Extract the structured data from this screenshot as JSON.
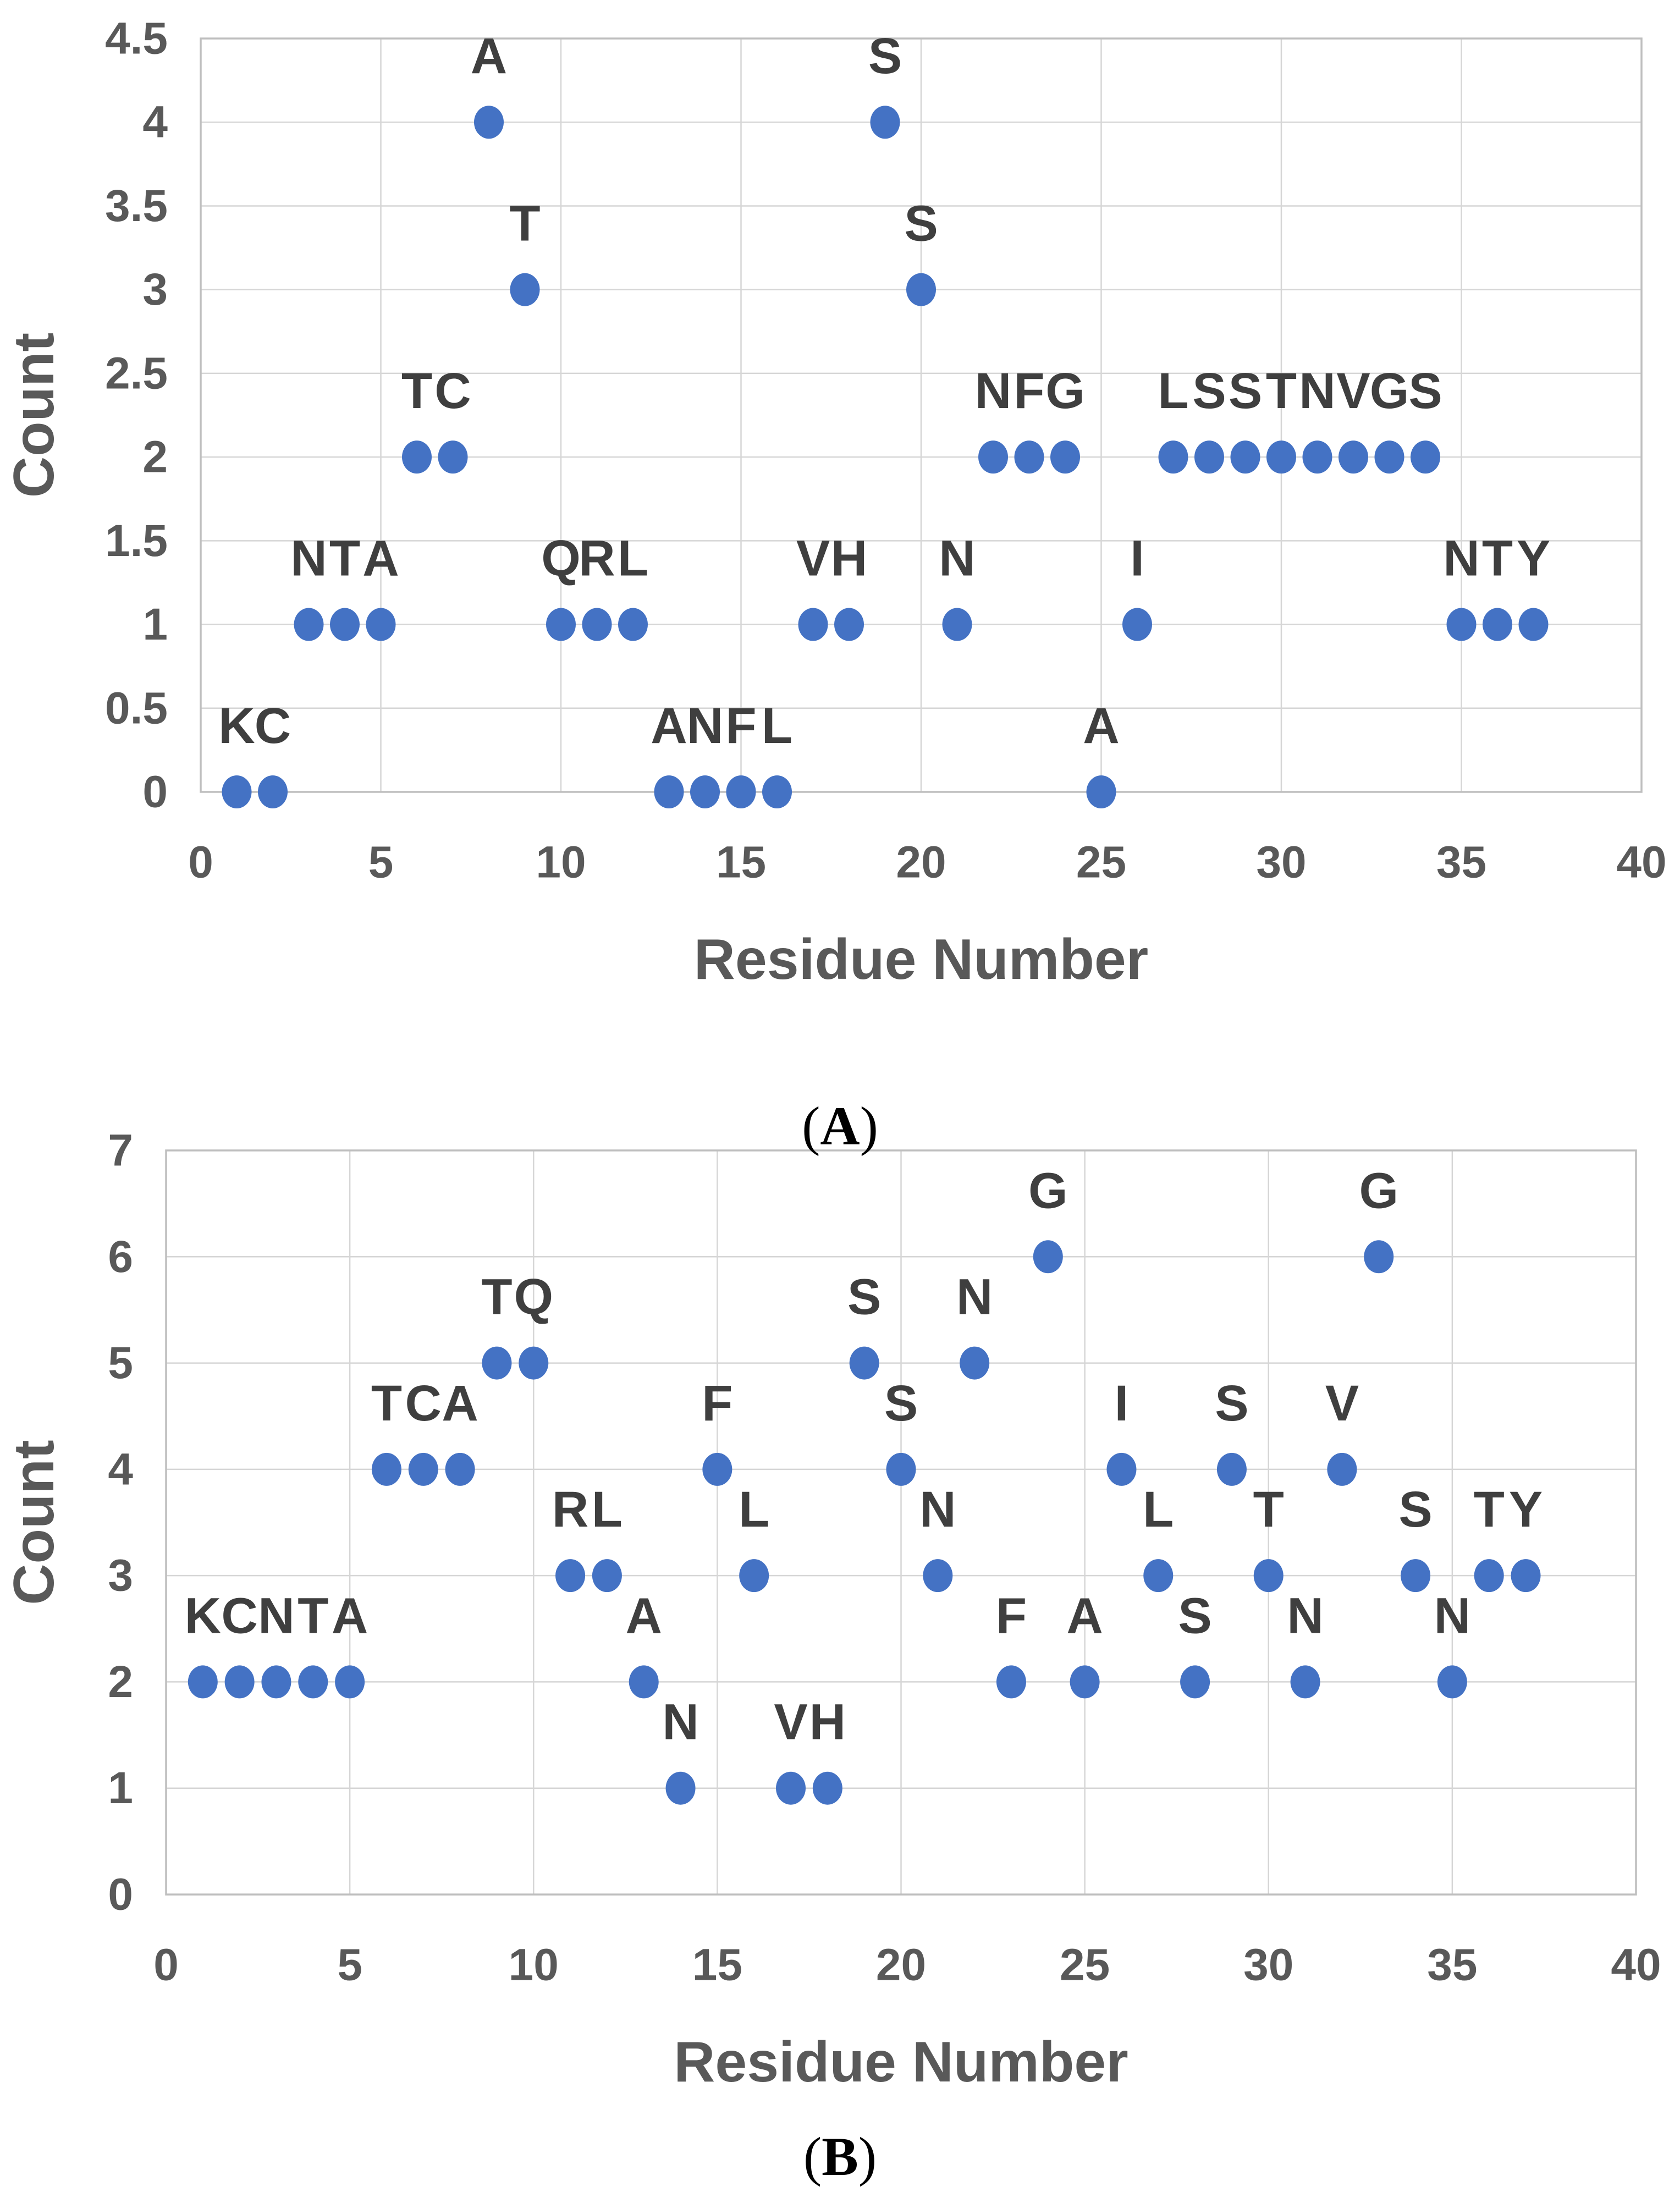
{
  "figure": {
    "background": "#ffffff",
    "captions": {
      "a_open": "(",
      "a_letter": "A",
      "a_close": ")",
      "b_open": "(",
      "b_letter": "B",
      "b_close": ")"
    }
  },
  "colors": {
    "dot": "#4472C4",
    "grid": "#D6D6D6",
    "axis_border": "#BFBFBF",
    "tick_text": "#595959",
    "axis_title_text": "#595959",
    "point_label_text": "#3F3F3F"
  },
  "chart_data": [
    {
      "type": "scatter",
      "panel": "A",
      "caption_open": "(",
      "caption_letter": "A",
      "caption_close": ")",
      "xlabel": "Residue Number",
      "ylabel": "Count",
      "xlim": [
        0,
        40
      ],
      "ylim": [
        0,
        4.5
      ],
      "xticks": [
        0,
        5,
        10,
        15,
        20,
        25,
        30,
        35,
        40
      ],
      "xtick_labels": [
        "0",
        "5",
        "10",
        "15",
        "20",
        "25",
        "30",
        "35",
        "40"
      ],
      "yticks": [
        0,
        0.5,
        1,
        1.5,
        2,
        2.5,
        3,
        3.5,
        4,
        4.5
      ],
      "ytick_labels": [
        "0",
        "0.5",
        "1",
        "1.5",
        "2",
        "2.5",
        "3",
        "3.5",
        "4",
        "4.5"
      ],
      "grid": true,
      "legend": "none",
      "points": [
        {
          "x": 1,
          "y": 0,
          "label": "K"
        },
        {
          "x": 2,
          "y": 0,
          "label": "C"
        },
        {
          "x": 3,
          "y": 1,
          "label": "N"
        },
        {
          "x": 4,
          "y": 1,
          "label": "T"
        },
        {
          "x": 5,
          "y": 1,
          "label": "A"
        },
        {
          "x": 6,
          "y": 2,
          "label": "T"
        },
        {
          "x": 7,
          "y": 2,
          "label": "C"
        },
        {
          "x": 8,
          "y": 4,
          "label": "A"
        },
        {
          "x": 9,
          "y": 3,
          "label": "T"
        },
        {
          "x": 10,
          "y": 1,
          "label": "Q"
        },
        {
          "x": 11,
          "y": 1,
          "label": "R"
        },
        {
          "x": 12,
          "y": 1,
          "label": "L"
        },
        {
          "x": 13,
          "y": 0,
          "label": "A"
        },
        {
          "x": 14,
          "y": 0,
          "label": "N"
        },
        {
          "x": 15,
          "y": 0,
          "label": "F"
        },
        {
          "x": 16,
          "y": 0,
          "label": "L"
        },
        {
          "x": 17,
          "y": 1,
          "label": "V"
        },
        {
          "x": 18,
          "y": 1,
          "label": "H"
        },
        {
          "x": 19,
          "y": 4,
          "label": "S"
        },
        {
          "x": 20,
          "y": 3,
          "label": "S"
        },
        {
          "x": 21,
          "y": 1,
          "label": "N"
        },
        {
          "x": 22,
          "y": 2,
          "label": "N"
        },
        {
          "x": 23,
          "y": 2,
          "label": "F"
        },
        {
          "x": 24,
          "y": 2,
          "label": "G"
        },
        {
          "x": 25,
          "y": 0,
          "label": "A"
        },
        {
          "x": 26,
          "y": 1,
          "label": "I"
        },
        {
          "x": 27,
          "y": 2,
          "label": "L"
        },
        {
          "x": 28,
          "y": 2,
          "label": "S"
        },
        {
          "x": 29,
          "y": 2,
          "label": "S"
        },
        {
          "x": 30,
          "y": 2,
          "label": "T"
        },
        {
          "x": 31,
          "y": 2,
          "label": "N"
        },
        {
          "x": 32,
          "y": 2,
          "label": "V"
        },
        {
          "x": 33,
          "y": 2,
          "label": "G"
        },
        {
          "x": 34,
          "y": 2,
          "label": "S"
        },
        {
          "x": 35,
          "y": 1,
          "label": "N"
        },
        {
          "x": 36,
          "y": 1,
          "label": "T"
        },
        {
          "x": 37,
          "y": 1,
          "label": "Y"
        }
      ]
    },
    {
      "type": "scatter",
      "panel": "B",
      "caption_open": "(",
      "caption_letter": "B",
      "caption_close": ")",
      "xlabel": "Residue Number",
      "ylabel": "Count",
      "xlim": [
        0,
        40
      ],
      "ylim": [
        0,
        7
      ],
      "xticks": [
        0,
        5,
        10,
        15,
        20,
        25,
        30,
        35,
        40
      ],
      "xtick_labels": [
        "0",
        "5",
        "10",
        "15",
        "20",
        "25",
        "30",
        "35",
        "40"
      ],
      "yticks": [
        0,
        1,
        2,
        3,
        4,
        5,
        6,
        7
      ],
      "ytick_labels": [
        "0",
        "1",
        "2",
        "3",
        "4",
        "5",
        "6",
        "7"
      ],
      "grid": true,
      "legend": "none",
      "points": [
        {
          "x": 1,
          "y": 2,
          "label": "K"
        },
        {
          "x": 2,
          "y": 2,
          "label": "C"
        },
        {
          "x": 3,
          "y": 2,
          "label": "N"
        },
        {
          "x": 4,
          "y": 2,
          "label": "T"
        },
        {
          "x": 5,
          "y": 2,
          "label": "A"
        },
        {
          "x": 6,
          "y": 4,
          "label": "T"
        },
        {
          "x": 7,
          "y": 4,
          "label": "C"
        },
        {
          "x": 8,
          "y": 4,
          "label": "A"
        },
        {
          "x": 9,
          "y": 5,
          "label": "T"
        },
        {
          "x": 10,
          "y": 5,
          "label": "Q"
        },
        {
          "x": 11,
          "y": 3,
          "label": "R"
        },
        {
          "x": 12,
          "y": 3,
          "label": "L"
        },
        {
          "x": 13,
          "y": 2,
          "label": "A"
        },
        {
          "x": 14,
          "y": 1,
          "label": "N"
        },
        {
          "x": 15,
          "y": 4,
          "label": "F"
        },
        {
          "x": 16,
          "y": 3,
          "label": "L"
        },
        {
          "x": 17,
          "y": 1,
          "label": "V"
        },
        {
          "x": 18,
          "y": 1,
          "label": "H"
        },
        {
          "x": 19,
          "y": 5,
          "label": "S"
        },
        {
          "x": 20,
          "y": 4,
          "label": "S"
        },
        {
          "x": 21,
          "y": 3,
          "label": "N"
        },
        {
          "x": 22,
          "y": 5,
          "label": "N"
        },
        {
          "x": 23,
          "y": 2,
          "label": "F"
        },
        {
          "x": 24,
          "y": 6,
          "label": "G"
        },
        {
          "x": 25,
          "y": 2,
          "label": "A"
        },
        {
          "x": 26,
          "y": 4,
          "label": "I"
        },
        {
          "x": 27,
          "y": 3,
          "label": "L"
        },
        {
          "x": 28,
          "y": 2,
          "label": "S"
        },
        {
          "x": 29,
          "y": 4,
          "label": "S"
        },
        {
          "x": 30,
          "y": 3,
          "label": "T"
        },
        {
          "x": 31,
          "y": 2,
          "label": "N"
        },
        {
          "x": 32,
          "y": 4,
          "label": "V"
        },
        {
          "x": 33,
          "y": 6,
          "label": "G"
        },
        {
          "x": 34,
          "y": 3,
          "label": "S"
        },
        {
          "x": 35,
          "y": 2,
          "label": "N"
        },
        {
          "x": 36,
          "y": 3,
          "label": "T"
        },
        {
          "x": 37,
          "y": 3,
          "label": "Y"
        }
      ]
    }
  ]
}
